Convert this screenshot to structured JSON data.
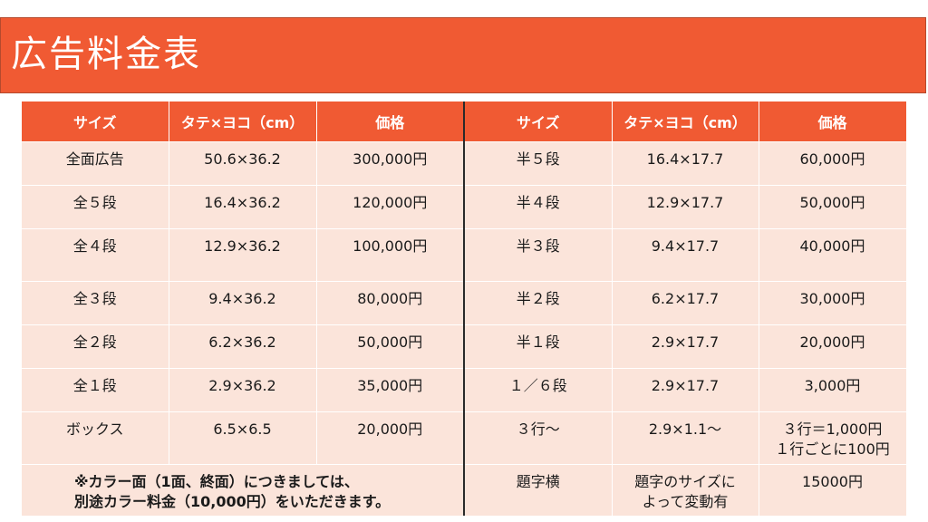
{
  "title": "広告料金表",
  "headers": [
    "サイズ",
    "タテ×ヨコ（cm）",
    "価格",
    "サイズ",
    "タテ×ヨコ（cm）",
    "価格"
  ],
  "rows": [
    {
      "size_l": "全面広告",
      "dims_l": "50.6×36.2",
      "price_l": "300,000円",
      "size_r": "半５段",
      "dims_r": "16.4×17.7",
      "price_r": "60,000円"
    },
    {
      "size_l": "全５段",
      "dims_l": "16.4×36.2",
      "price_l": "120,000円",
      "size_r": "半４段",
      "dims_r": "12.9×17.7",
      "price_r": "50,000円"
    },
    {
      "size_l": "全４段",
      "dims_l": "12.9×36.2",
      "price_l": "100,000円",
      "size_r": "半３段",
      "dims_r": "9.4×17.7",
      "price_r": "40,000円"
    },
    {
      "size_l": "全３段",
      "dims_l": "9.4×36.2",
      "price_l": "80,000円",
      "size_r": "半２段",
      "dims_r": "6.2×17.7",
      "price_r": "30,000円"
    },
    {
      "size_l": "全２段",
      "dims_l": "6.2×36.2",
      "price_l": "50,000円",
      "size_r": "半１段",
      "dims_r": "2.9×17.7",
      "price_r": "20,000円"
    },
    {
      "size_l": "全１段",
      "dims_l": "2.9×36.2",
      "price_l": "35,000円",
      "size_r": "１／６段",
      "dims_r": "2.9×17.7",
      "price_r": "3,000円"
    },
    {
      "size_l": "ボックス",
      "dims_l": "6.5×6.5",
      "price_l": "20,000円",
      "size_r": "３行～",
      "dims_r": "2.9×1.1～",
      "price_r_line1": "３行＝1,000円",
      "price_r_line2": "１行ごとに100円"
    }
  ],
  "last_row": {
    "note_line1": "※カラー面（1面、終面）につきましては、",
    "note_line2": "別途カラー料金（10,000円）をいただきます。",
    "size_r": "題字横",
    "dims_r_line1": "題字のサイズに",
    "dims_r_line2": "よって変動有",
    "price_r": "15000円"
  }
}
